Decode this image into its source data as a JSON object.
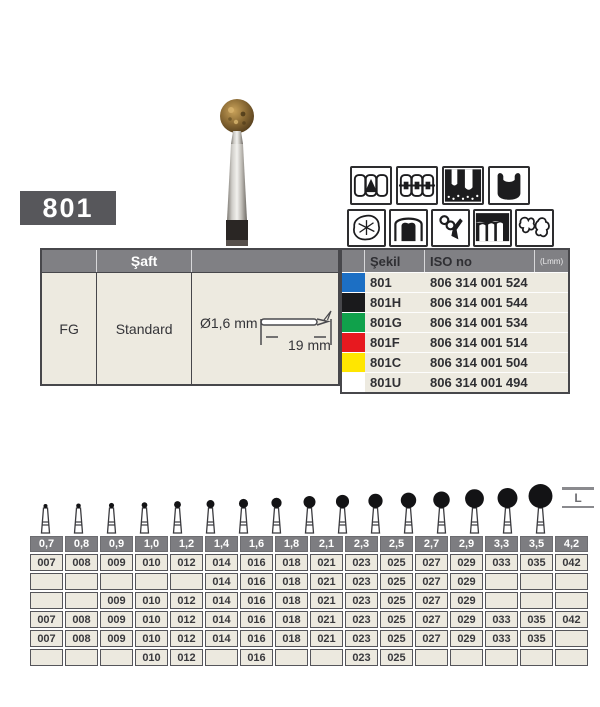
{
  "badge": {
    "label": "801"
  },
  "left_table": {
    "header": "Şaft",
    "shank": "FG",
    "shaft_type": "Standard",
    "diameter": "Ø1,6 mm",
    "length": "19 mm"
  },
  "iso_table": {
    "headers": {
      "shape": "Şekil",
      "iso": "ISO no",
      "lmm": "(Lmm)"
    },
    "rows": [
      {
        "color": "#1c6fc4",
        "shape": "801",
        "iso": "806 314 001 524",
        "lmm": ""
      },
      {
        "color": "#1a1a1c",
        "shape": "801H",
        "iso": "806 314 001 544",
        "lmm": ""
      },
      {
        "color": "#10a14b",
        "shape": "801G",
        "iso": "806 314 001 534",
        "lmm": ""
      },
      {
        "color": "#e7191f",
        "shape": "801F",
        "iso": "806 314 001 514",
        "lmm": ""
      },
      {
        "color": "#ffe600",
        "shape": "801C",
        "iso": "806 314 001 504",
        "lmm": ""
      },
      {
        "color": "#ffffff",
        "shape": "801U",
        "iso": "806 314 001 494",
        "lmm": ""
      }
    ]
  },
  "application_icons": {
    "row1": [
      "teeth-arrow-icon",
      "orthodontic-brackets-icon",
      "cavity-preparation-icon",
      "molar-silhouette-icon"
    ],
    "row2": [
      "occlusal-surface-icon",
      "crown-icon",
      "clasp-adjustment-icon",
      "gingiva-line-icon",
      "tooth-bone-icon"
    ]
  },
  "size_table": {
    "l_label": "L",
    "sizes": [
      "0,7",
      "0,8",
      "0,9",
      "1,0",
      "1,2",
      "1,4",
      "1,6",
      "1,8",
      "2,1",
      "2,3",
      "2,5",
      "2,7",
      "2,9",
      "3,3",
      "3,5",
      "4,2"
    ],
    "rows": [
      [
        "007",
        "008",
        "009",
        "010",
        "012",
        "014",
        "016",
        "018",
        "021",
        "023",
        "025",
        "027",
        "029",
        "033",
        "035",
        "042"
      ],
      [
        "",
        "",
        "",
        "",
        "",
        "014",
        "016",
        "018",
        "021",
        "023",
        "025",
        "027",
        "029",
        "",
        "",
        ""
      ],
      [
        "",
        "",
        "009",
        "010",
        "012",
        "014",
        "016",
        "018",
        "021",
        "023",
        "025",
        "027",
        "029",
        "",
        "",
        ""
      ],
      [
        "007",
        "008",
        "009",
        "010",
        "012",
        "014",
        "016",
        "018",
        "021",
        "023",
        "025",
        "027",
        "029",
        "033",
        "035",
        "042"
      ],
      [
        "007",
        "008",
        "009",
        "010",
        "012",
        "014",
        "016",
        "018",
        "021",
        "023",
        "025",
        "027",
        "029",
        "033",
        "035",
        ""
      ],
      [
        "",
        "",
        "",
        "010",
        "012",
        "",
        "016",
        "",
        "",
        "023",
        "025",
        "",
        "",
        "",
        "",
        ""
      ]
    ]
  }
}
